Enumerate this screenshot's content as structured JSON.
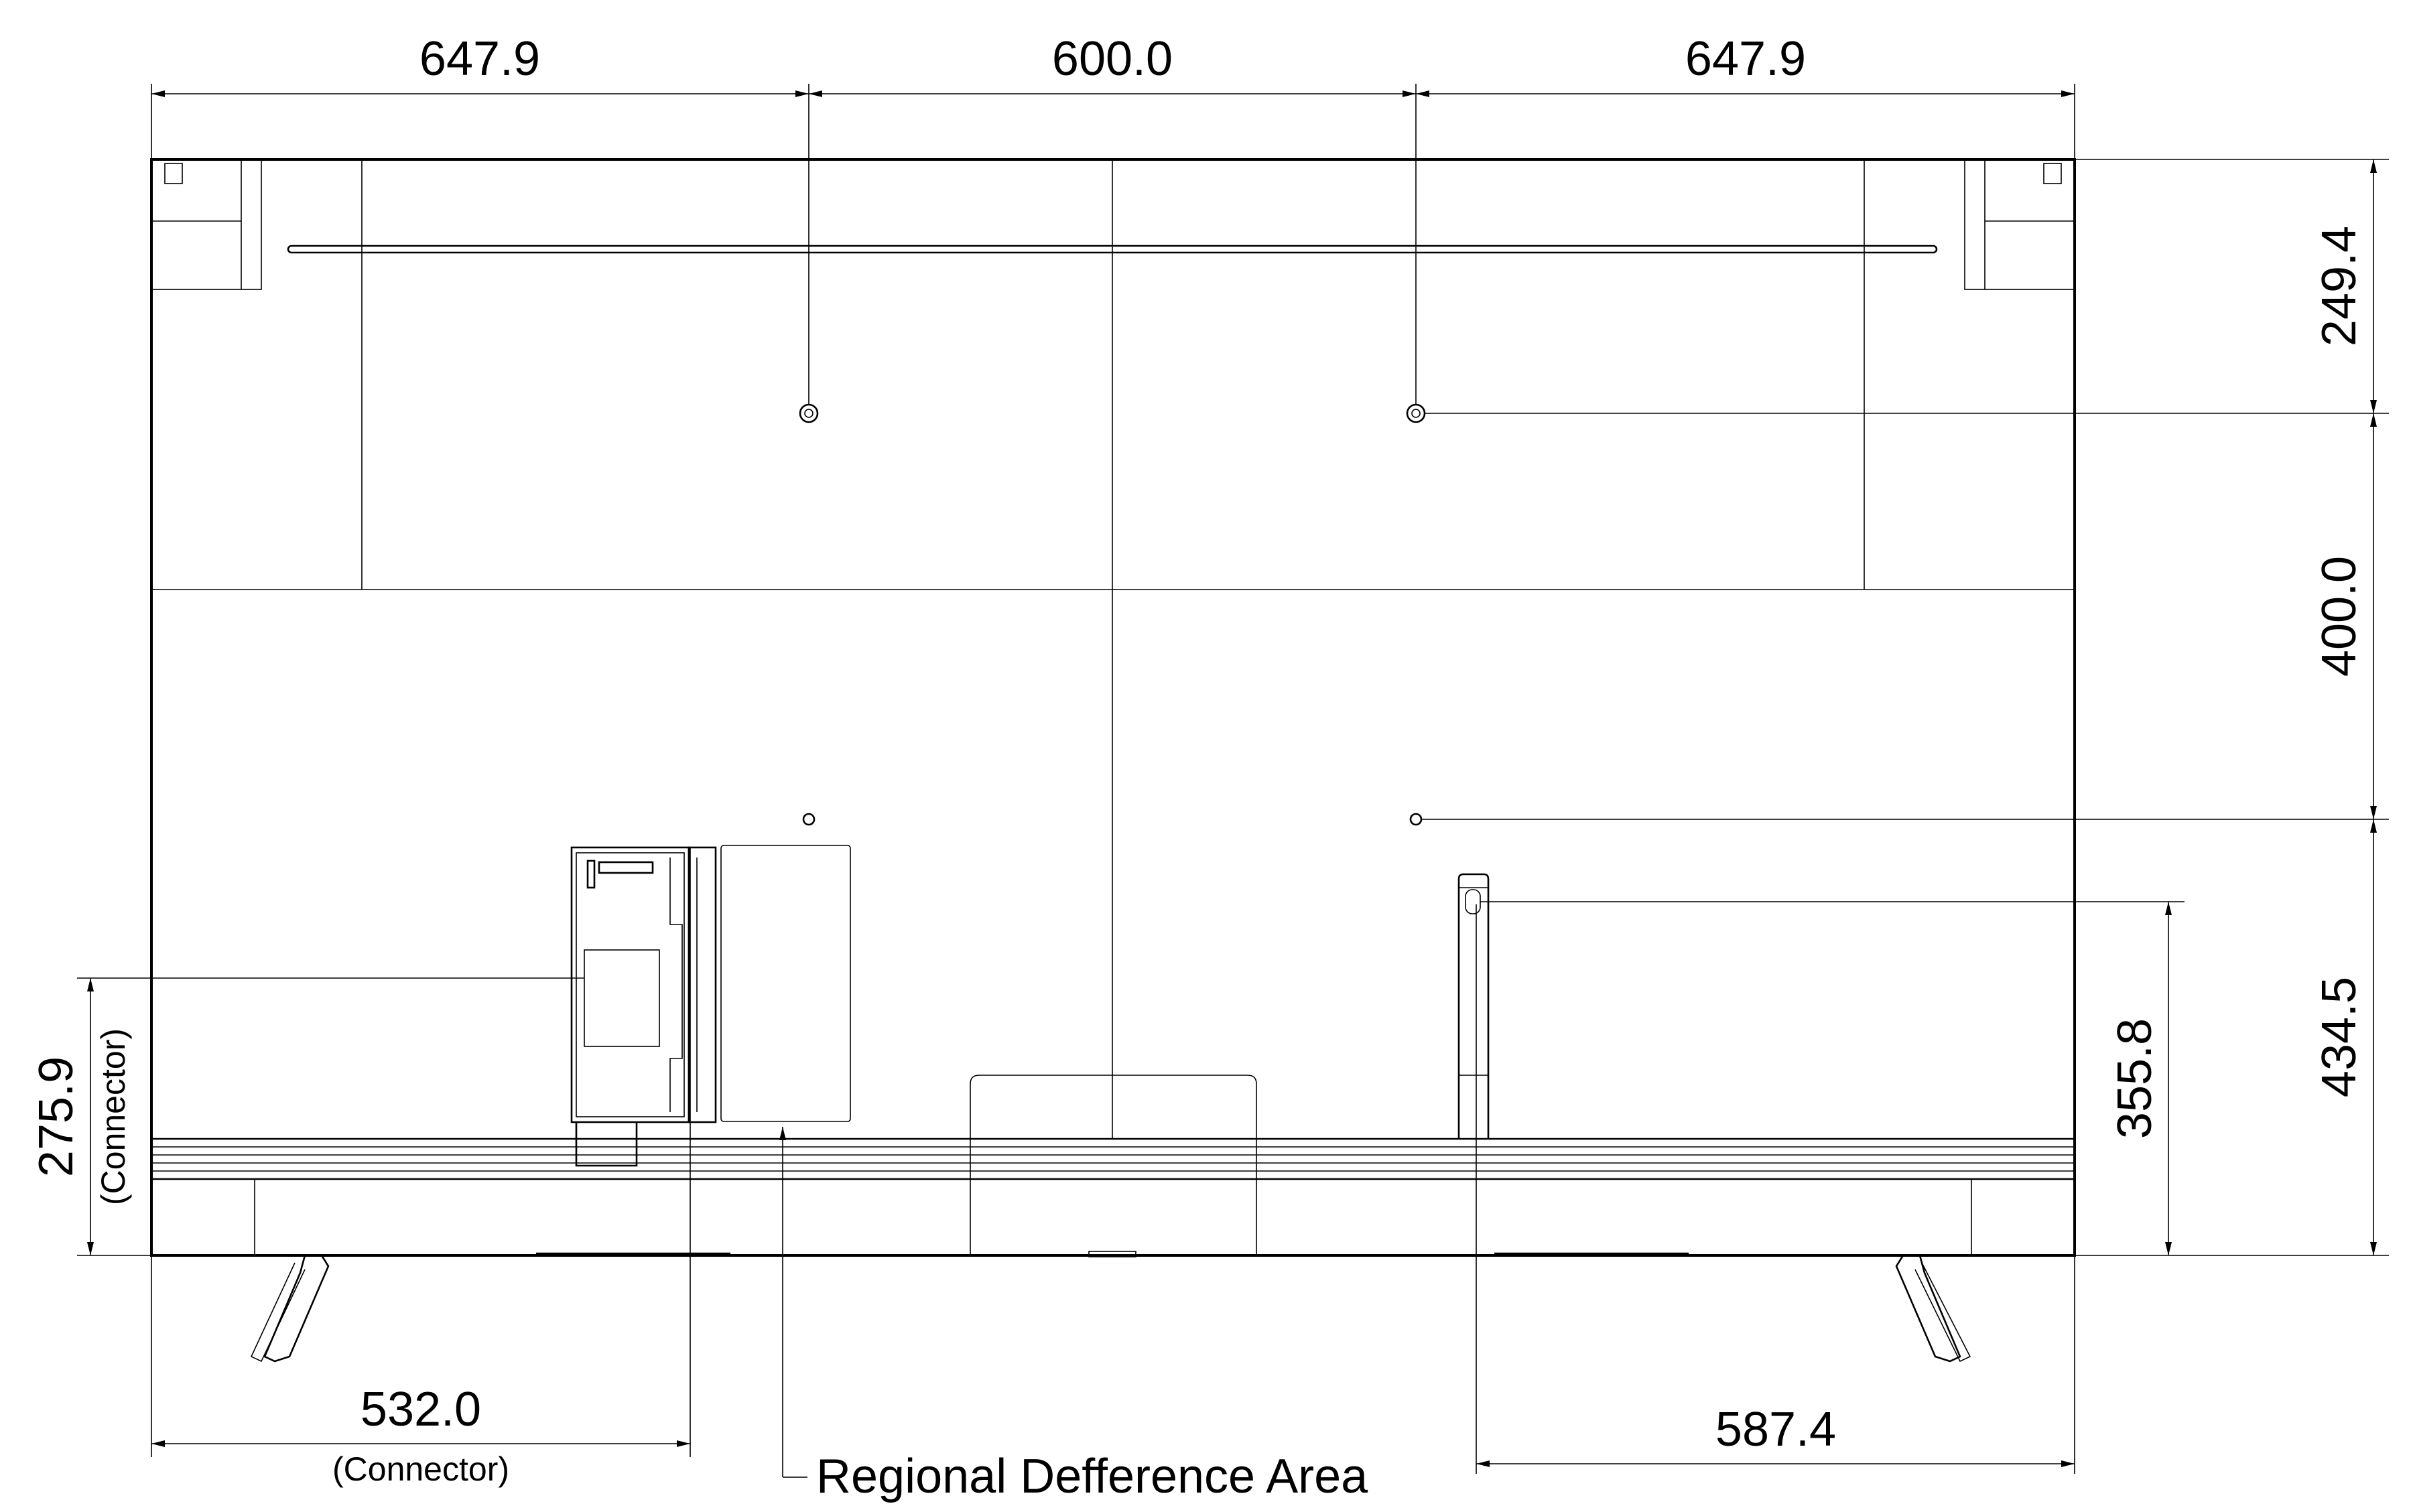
{
  "dimensions": {
    "top_left": "647.9",
    "top_middle": "600.0",
    "top_right": "647.9",
    "right_upper": "249.4",
    "right_middle": "400.0",
    "right_lower": "434.5",
    "right_inner": "355.8",
    "left_vertical": "275.9",
    "left_vertical_note": "(Connector)",
    "bottom_left": "532.0",
    "bottom_left_note": "(Connector)",
    "bottom_right": "587.4"
  },
  "callout": {
    "regional_area": "Regional Defference Area"
  }
}
